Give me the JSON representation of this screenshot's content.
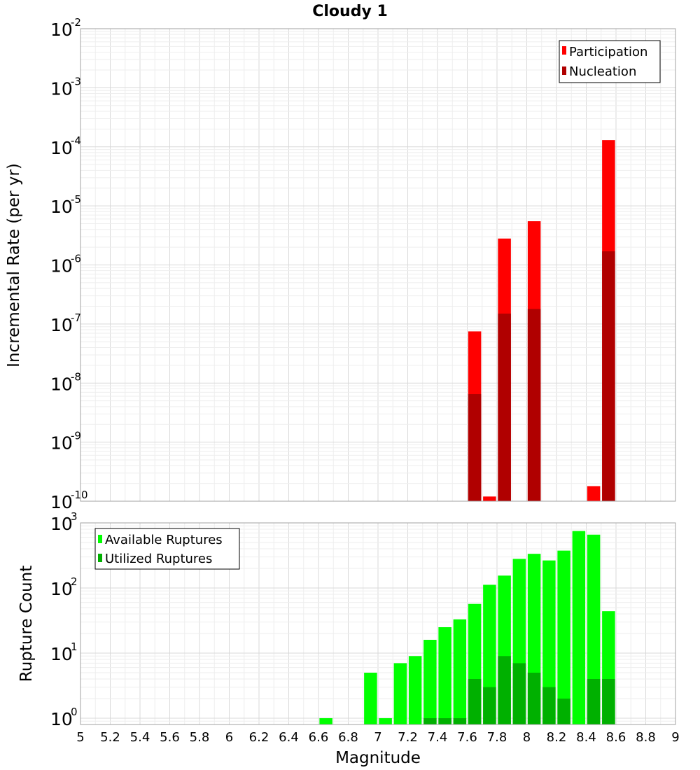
{
  "chart_data": [
    {
      "type": "bar",
      "title": "Cloudy 1",
      "xlabel": "",
      "ylabel": "Incremental Rate (per yr)",
      "yscale": "log",
      "ylim": [
        1e-10,
        0.01
      ],
      "xlim": [
        5,
        9
      ],
      "grid": true,
      "legend_position": "top-right",
      "y_ticks": [
        {
          "base": "10",
          "exp": "-2"
        },
        {
          "base": "10",
          "exp": "-3"
        },
        {
          "base": "10",
          "exp": "-4"
        },
        {
          "base": "10",
          "exp": "-5"
        },
        {
          "base": "10",
          "exp": "-6"
        },
        {
          "base": "10",
          "exp": "-7"
        },
        {
          "base": "10",
          "exp": "-8"
        },
        {
          "base": "10",
          "exp": "-9"
        },
        {
          "base": "10",
          "exp": "-10"
        }
      ],
      "series": [
        {
          "name": "Participation",
          "color": "#ff0000",
          "points": [
            {
              "x": 7.65,
              "y": 7.5e-08
            },
            {
              "x": 7.75,
              "y": 1.2e-10
            },
            {
              "x": 7.85,
              "y": 2.8e-06
            },
            {
              "x": 8.05,
              "y": 5.5e-06
            },
            {
              "x": 8.45,
              "y": 1.8e-10
            },
            {
              "x": 8.55,
              "y": 0.00013
            }
          ]
        },
        {
          "name": "Nucleation",
          "color": "#b00000",
          "points": [
            {
              "x": 7.65,
              "y": 6.5e-09
            },
            {
              "x": 7.85,
              "y": 1.5e-07
            },
            {
              "x": 8.05,
              "y": 1.8e-07
            },
            {
              "x": 8.55,
              "y": 1.7e-06
            }
          ]
        }
      ]
    },
    {
      "type": "bar",
      "title": "",
      "xlabel": "Magnitude",
      "ylabel": "Rupture Count",
      "yscale": "log",
      "ylim": [
        0.8,
        1000
      ],
      "xlim": [
        5,
        9
      ],
      "grid": true,
      "legend_position": "top-left",
      "x_ticks": [
        "5",
        "5.2",
        "5.4",
        "5.6",
        "5.8",
        "6",
        "6.2",
        "6.4",
        "6.6",
        "6.8",
        "7",
        "7.2",
        "7.4",
        "7.6",
        "7.8",
        "8",
        "8.2",
        "8.4",
        "8.6",
        "8.8",
        "9"
      ],
      "y_ticks": [
        {
          "base": "10",
          "exp": "3"
        },
        {
          "base": "10",
          "exp": "2"
        },
        {
          "base": "10",
          "exp": "1"
        },
        {
          "base": "10",
          "exp": "0"
        }
      ],
      "series": [
        {
          "name": "Available Ruptures",
          "color": "#00ff00",
          "points": [
            {
              "x": 6.65,
              "y": 1
            },
            {
              "x": 6.95,
              "y": 5
            },
            {
              "x": 7.05,
              "y": 1
            },
            {
              "x": 7.15,
              "y": 7
            },
            {
              "x": 7.25,
              "y": 9
            },
            {
              "x": 7.35,
              "y": 16
            },
            {
              "x": 7.45,
              "y": 25
            },
            {
              "x": 7.55,
              "y": 33
            },
            {
              "x": 7.65,
              "y": 57
            },
            {
              "x": 7.75,
              "y": 112
            },
            {
              "x": 7.85,
              "y": 155
            },
            {
              "x": 7.95,
              "y": 280
            },
            {
              "x": 8.05,
              "y": 335
            },
            {
              "x": 8.15,
              "y": 265
            },
            {
              "x": 8.25,
              "y": 375
            },
            {
              "x": 8.35,
              "y": 750
            },
            {
              "x": 8.45,
              "y": 660
            },
            {
              "x": 8.55,
              "y": 44
            }
          ]
        },
        {
          "name": "Utilized Ruptures",
          "color": "#00b000",
          "points": [
            {
              "x": 7.35,
              "y": 1
            },
            {
              "x": 7.45,
              "y": 1
            },
            {
              "x": 7.55,
              "y": 1
            },
            {
              "x": 7.65,
              "y": 4
            },
            {
              "x": 7.75,
              "y": 3
            },
            {
              "x": 7.85,
              "y": 9
            },
            {
              "x": 7.95,
              "y": 7
            },
            {
              "x": 8.05,
              "y": 5
            },
            {
              "x": 8.15,
              "y": 3
            },
            {
              "x": 8.25,
              "y": 2
            },
            {
              "x": 8.45,
              "y": 4
            },
            {
              "x": 8.55,
              "y": 4
            }
          ]
        }
      ]
    }
  ]
}
